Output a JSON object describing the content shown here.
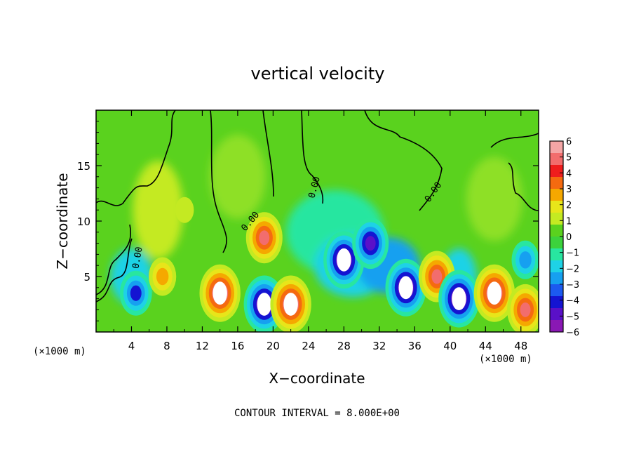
{
  "chart_data": {
    "type": "heatmap",
    "title": "vertical velocity",
    "xlabel": "X−coordinate",
    "ylabel": "Z−coordinate",
    "x_unit": "(×1000 m)",
    "x_unit_right": "(×1000 m)",
    "footer": "CONTOUR INTERVAL = 8.000E+00",
    "xlim": [
      0,
      50
    ],
    "ylim": [
      0,
      20
    ],
    "x_ticks": [
      4,
      8,
      12,
      16,
      20,
      24,
      28,
      32,
      36,
      40,
      44,
      48
    ],
    "y_ticks": [
      5,
      10,
      15
    ],
    "colorbar": {
      "min": -6,
      "max": 6,
      "labels": [
        "6",
        "5",
        "4",
        "3",
        "2",
        "1",
        "0",
        "−1",
        "−2",
        "−3",
        "−4",
        "−5",
        "−6"
      ],
      "colors": [
        "#f4a6a6",
        "#f26d6d",
        "#ef1d1d",
        "#f56a10",
        "#f5a800",
        "#e8e51a",
        "#c4ea22",
        "#5ad21e",
        "#3cd23c",
        "#28e6a0",
        "#1ed2e6",
        "#16a0f0",
        "#1c5af0",
        "#1414d2",
        "#5a10c8",
        "#8a18b4"
      ]
    },
    "contour_labels": [
      "0.00",
      "0.00",
      "0.00",
      "0.00"
    ],
    "features": [
      {
        "x": 4.5,
        "z": 3.5,
        "sign": "down",
        "w": -4
      },
      {
        "x": 7.5,
        "z": 5.0,
        "sign": "up",
        "w": 3
      },
      {
        "x": 10,
        "z": 11,
        "sign": "up",
        "w": 1
      },
      {
        "x": 14,
        "z": 3.5,
        "sign": "up",
        "w": 6
      },
      {
        "x": 19,
        "z": 8.5,
        "sign": "up",
        "w": 5
      },
      {
        "x": 19,
        "z": 2.5,
        "sign": "down",
        "w": -6
      },
      {
        "x": 22,
        "z": 2.5,
        "sign": "up",
        "w": 6
      },
      {
        "x": 28,
        "z": 6.5,
        "sign": "down",
        "w": -6
      },
      {
        "x": 31,
        "z": 8,
        "sign": "down",
        "w": -5
      },
      {
        "x": 35,
        "z": 4,
        "sign": "down",
        "w": -6
      },
      {
        "x": 38.5,
        "z": 5,
        "sign": "up",
        "w": 5
      },
      {
        "x": 41,
        "z": 3,
        "sign": "down",
        "w": -6
      },
      {
        "x": 45,
        "z": 3.5,
        "sign": "up",
        "w": 6
      },
      {
        "x": 48.5,
        "z": 2,
        "sign": "up",
        "w": 5
      },
      {
        "x": 48.5,
        "z": 6.5,
        "sign": "down",
        "w": -3
      }
    ]
  }
}
